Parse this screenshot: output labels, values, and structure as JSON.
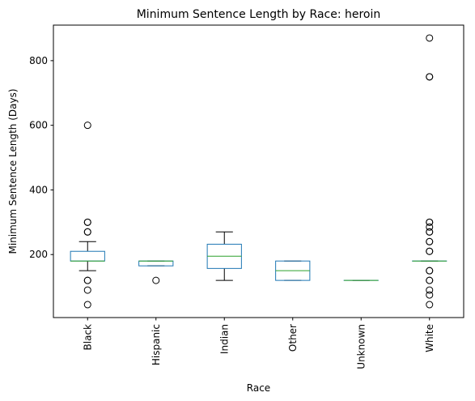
{
  "chart_data": {
    "type": "box",
    "title": "Minimum Sentence Length by Race: heroin",
    "xlabel": "Race",
    "ylabel": "Minimum Sentence Length (Days)",
    "ylim": [
      5,
      910
    ],
    "yticks": [
      200,
      400,
      600,
      800
    ],
    "grid": false,
    "colors": {
      "box": "#1f77b4",
      "median": "#2ca02c",
      "whisker": "#000000",
      "flier": "#000000"
    },
    "categories": [
      "Black",
      "Hispanic",
      "Indian",
      "Other",
      "Unknown",
      "White"
    ],
    "boxes": [
      {
        "category": "Black",
        "whisker_low": 150,
        "q1": 180,
        "median": 180,
        "q3": 210,
        "whisker_high": 240,
        "fliers": [
          45,
          90,
          120,
          120,
          270,
          270,
          300,
          300,
          600
        ]
      },
      {
        "category": "Hispanic",
        "whisker_low": 165,
        "q1": 165,
        "median": 180,
        "q3": 180,
        "whisker_high": 180,
        "fliers": [
          120
        ]
      },
      {
        "category": "Indian",
        "whisker_low": 120,
        "q1": 157,
        "median": 195,
        "q3": 232,
        "whisker_high": 270,
        "fliers": []
      },
      {
        "category": "Other",
        "whisker_low": 120,
        "q1": 120,
        "median": 150,
        "q3": 180,
        "whisker_high": 180,
        "fliers": []
      },
      {
        "category": "Unknown",
        "whisker_low": 120,
        "q1": 120,
        "median": 120,
        "q3": 120,
        "whisker_high": 120,
        "fliers": []
      },
      {
        "category": "White",
        "whisker_low": 180,
        "q1": 180,
        "median": 180,
        "q3": 180,
        "whisker_high": 180,
        "fliers": [
          45,
          75,
          90,
          120,
          120,
          150,
          150,
          210,
          210,
          240,
          240,
          270,
          270,
          285,
          300,
          300,
          750,
          750,
          870
        ]
      }
    ]
  }
}
